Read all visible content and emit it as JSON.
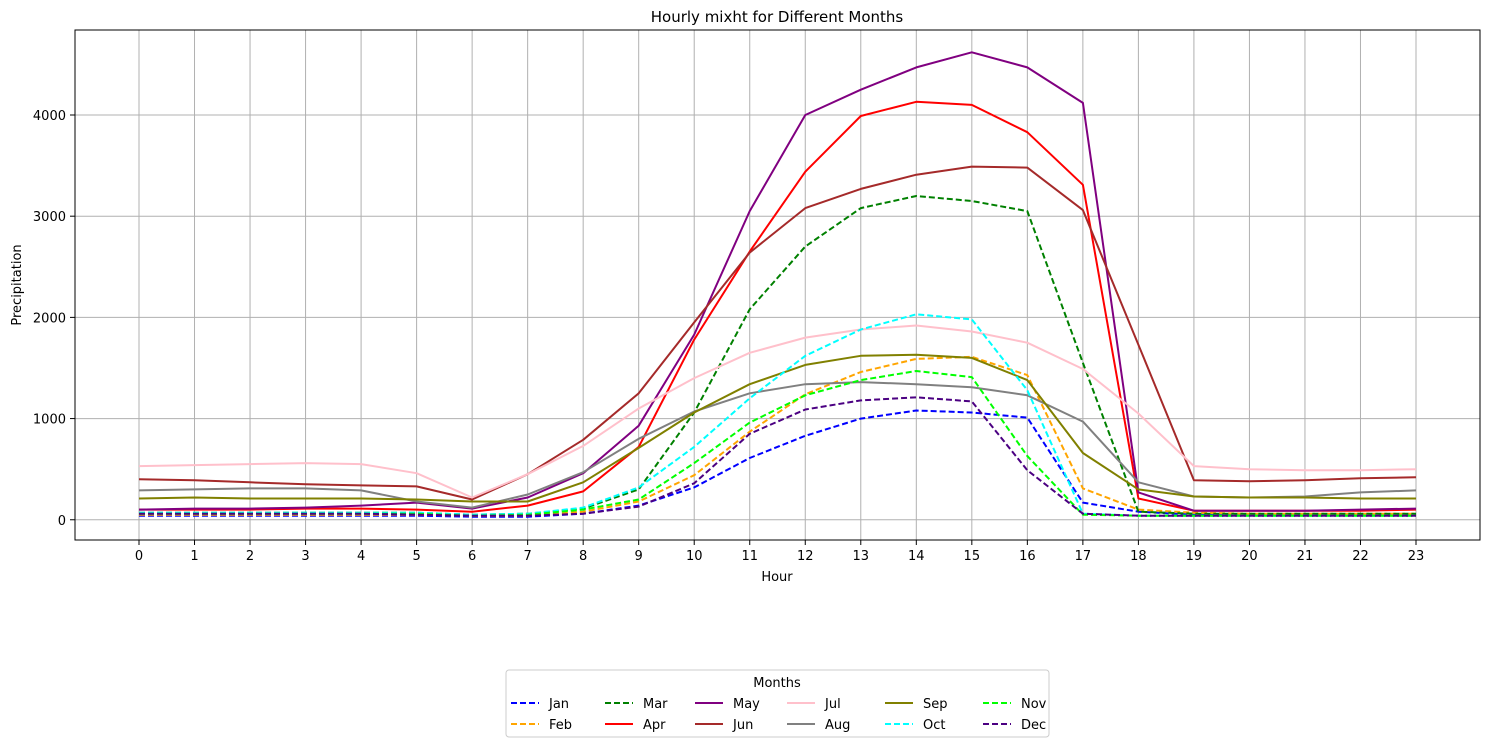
{
  "chart_data": {
    "type": "line",
    "title": "Hourly mixht for Different Months",
    "xlabel": "Hour",
    "ylabel": "Precipitation",
    "x": [
      0,
      1,
      2,
      3,
      4,
      5,
      6,
      7,
      8,
      9,
      10,
      11,
      12,
      13,
      14,
      15,
      16,
      17,
      18,
      19,
      20,
      21,
      22,
      23
    ],
    "xticks": [
      "0",
      "1",
      "2",
      "3",
      "4",
      "5",
      "6",
      "7",
      "8",
      "9",
      "10",
      "11",
      "12",
      "13",
      "14",
      "15",
      "16",
      "17",
      "18",
      "19",
      "20",
      "21",
      "22",
      "23"
    ],
    "ylim": [
      -200,
      4840
    ],
    "yticks": [
      0,
      1000,
      2000,
      3000,
      4000
    ],
    "ytick_labels": [
      "0",
      "1000",
      "2000",
      "3000",
      "4000"
    ],
    "grid": true,
    "legend": {
      "title": "Months",
      "placement": "lower-center-outside",
      "ncol": 6
    },
    "series": [
      {
        "name": "Jan",
        "color": "#0000ff",
        "dash": "dashed",
        "values": [
          40,
          40,
          40,
          40,
          40,
          40,
          30,
          30,
          60,
          140,
          320,
          610,
          830,
          1000,
          1080,
          1060,
          1010,
          170,
          80,
          50,
          50,
          50,
          50,
          50
        ]
      },
      {
        "name": "Feb",
        "color": "#ffa500",
        "dash": "dashed",
        "values": [
          50,
          50,
          50,
          50,
          50,
          50,
          40,
          40,
          80,
          180,
          440,
          870,
          1240,
          1460,
          1590,
          1610,
          1430,
          310,
          100,
          70,
          60,
          60,
          60,
          60
        ]
      },
      {
        "name": "Mar",
        "color": "#008000",
        "dash": "dashed",
        "values": [
          70,
          70,
          70,
          70,
          70,
          70,
          50,
          60,
          110,
          300,
          1060,
          2080,
          2700,
          3080,
          3200,
          3150,
          3050,
          1550,
          80,
          60,
          60,
          60,
          60,
          60
        ]
      },
      {
        "name": "Apr",
        "color": "#ff0000",
        "dash": "solid",
        "values": [
          100,
          100,
          100,
          110,
          110,
          100,
          80,
          140,
          280,
          720,
          1780,
          2650,
          3440,
          3990,
          4130,
          4100,
          3830,
          3310,
          210,
          90,
          90,
          90,
          90,
          100
        ]
      },
      {
        "name": "May",
        "color": "#800080",
        "dash": "solid",
        "values": [
          100,
          110,
          110,
          120,
          140,
          170,
          110,
          220,
          460,
          930,
          1830,
          3050,
          4000,
          4250,
          4470,
          4620,
          4470,
          4120,
          270,
          90,
          90,
          90,
          100,
          110
        ]
      },
      {
        "name": "Jun",
        "color": "#a52a2a",
        "dash": "solid",
        "values": [
          400,
          390,
          370,
          350,
          340,
          330,
          200,
          450,
          790,
          1250,
          1950,
          2640,
          3080,
          3270,
          3410,
          3490,
          3480,
          3060,
          1730,
          390,
          380,
          390,
          410,
          420
        ]
      },
      {
        "name": "Jul",
        "color": "#ffc0cb",
        "dash": "solid",
        "values": [
          530,
          540,
          550,
          560,
          550,
          460,
          220,
          450,
          730,
          1100,
          1400,
          1650,
          1800,
          1880,
          1920,
          1860,
          1750,
          1490,
          1050,
          530,
          500,
          490,
          490,
          500
        ]
      },
      {
        "name": "Aug",
        "color": "#808080",
        "dash": "solid",
        "values": [
          290,
          300,
          310,
          310,
          290,
          180,
          120,
          250,
          470,
          800,
          1070,
          1250,
          1340,
          1360,
          1340,
          1310,
          1230,
          970,
          370,
          230,
          220,
          230,
          270,
          290
        ]
      },
      {
        "name": "Sep",
        "color": "#808000",
        "dash": "solid",
        "values": [
          210,
          220,
          210,
          210,
          210,
          200,
          180,
          180,
          370,
          710,
          1060,
          1340,
          1530,
          1620,
          1630,
          1600,
          1380,
          660,
          300,
          230,
          220,
          220,
          210,
          210
        ]
      },
      {
        "name": "Oct",
        "color": "#00ffff",
        "dash": "dashed",
        "values": [
          70,
          70,
          70,
          70,
          70,
          70,
          50,
          60,
          120,
          320,
          720,
          1200,
          1620,
          1880,
          2030,
          1980,
          1280,
          60,
          40,
          40,
          40,
          40,
          40,
          40
        ]
      },
      {
        "name": "Nov",
        "color": "#00ff00",
        "dash": "dashed",
        "values": [
          60,
          60,
          60,
          60,
          60,
          60,
          40,
          50,
          100,
          200,
          560,
          960,
          1230,
          1380,
          1470,
          1410,
          630,
          50,
          40,
          40,
          40,
          40,
          40,
          40
        ]
      },
      {
        "name": "Dec",
        "color": "#4b0082",
        "dash": "dashed",
        "values": [
          60,
          60,
          60,
          60,
          60,
          50,
          40,
          40,
          60,
          130,
          360,
          850,
          1090,
          1180,
          1210,
          1170,
          490,
          60,
          40,
          40,
          40,
          40,
          40,
          40
        ]
      }
    ]
  }
}
